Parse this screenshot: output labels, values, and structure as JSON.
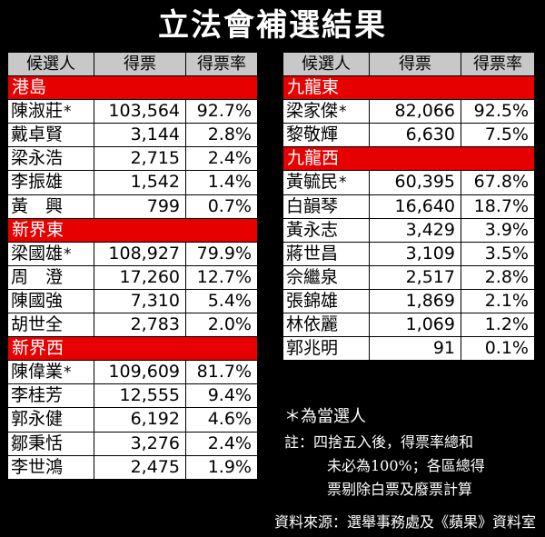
{
  "title": "立法會補選結果",
  "headers": {
    "name": "候選人",
    "votes": "得票",
    "rate": "得票率"
  },
  "left_regions": [
    {
      "name": "港島",
      "candidates": [
        {
          "name": "陳淑莊",
          "votes": "103,564",
          "rate": "92.7%",
          "elected": true
        },
        {
          "name": "戴卓賢",
          "votes": "3,144",
          "rate": "2.8%",
          "elected": false
        },
        {
          "name": "梁永浩",
          "votes": "2,715",
          "rate": "2.4%",
          "elected": false
        },
        {
          "name": "李振雄",
          "votes": "1,542",
          "rate": "1.4%",
          "elected": false
        },
        {
          "name": "黃　興",
          "votes": "799",
          "rate": "0.7%",
          "elected": false
        }
      ]
    },
    {
      "name": "新界東",
      "candidates": [
        {
          "name": "梁國雄",
          "votes": "108,927",
          "rate": "79.9%",
          "elected": true
        },
        {
          "name": "周　澄",
          "votes": "17,260",
          "rate": "12.7%",
          "elected": false
        },
        {
          "name": "陳國強",
          "votes": "7,310",
          "rate": "5.4%",
          "elected": false
        },
        {
          "name": "胡世全",
          "votes": "2,783",
          "rate": "2.0%",
          "elected": false
        }
      ]
    },
    {
      "name": "新界西",
      "candidates": [
        {
          "name": "陳偉業",
          "votes": "109,609",
          "rate": "81.7%",
          "elected": true
        },
        {
          "name": "李桂芳",
          "votes": "12,555",
          "rate": "9.4%",
          "elected": false
        },
        {
          "name": "郭永健",
          "votes": "6,192",
          "rate": "4.6%",
          "elected": false
        },
        {
          "name": "鄒秉恬",
          "votes": "3,276",
          "rate": "2.4%",
          "elected": false
        },
        {
          "name": "李世鴻",
          "votes": "2,475",
          "rate": "1.9%",
          "elected": false
        }
      ]
    }
  ],
  "right_regions": [
    {
      "name": "九龍東",
      "candidates": [
        {
          "name": "梁家傑",
          "votes": "82,066",
          "rate": "92.5%",
          "elected": true
        },
        {
          "name": "黎敬輝",
          "votes": "6,630",
          "rate": "7.5%",
          "elected": false
        }
      ]
    },
    {
      "name": "九龍西",
      "candidates": [
        {
          "name": "黃毓民",
          "votes": "60,395",
          "rate": "67.8%",
          "elected": true
        },
        {
          "name": "白韻琴",
          "votes": "16,640",
          "rate": "18.7%",
          "elected": false
        },
        {
          "name": "黃永志",
          "votes": "3,429",
          "rate": "3.9%",
          "elected": false
        },
        {
          "name": "蔣世昌",
          "votes": "3,109",
          "rate": "3.5%",
          "elected": false
        },
        {
          "name": "佘繼泉",
          "votes": "2,517",
          "rate": "2.8%",
          "elected": false
        },
        {
          "name": "張錦雄",
          "votes": "1,869",
          "rate": "2.1%",
          "elected": false
        },
        {
          "name": "林依麗",
          "votes": "1,069",
          "rate": "1.2%",
          "elected": false
        },
        {
          "name": "郭兆明",
          "votes": "91",
          "rate": "0.1%",
          "elected": false
        }
      ]
    }
  ],
  "elected_mark": "*",
  "notes": {
    "legend": "＊為當選人",
    "line1": "註：四捨五入後，得票率總和",
    "line2": "未必為100%；各區總得",
    "line3": "票剔除白票及廢票計算"
  },
  "source": "資料來源：選舉事務處及《蘋果》資料室",
  "colors": {
    "region_bar": "#e60000",
    "header_bg": "#c8c8c8",
    "background": "#000000",
    "cell_bg": "#ffffff"
  }
}
